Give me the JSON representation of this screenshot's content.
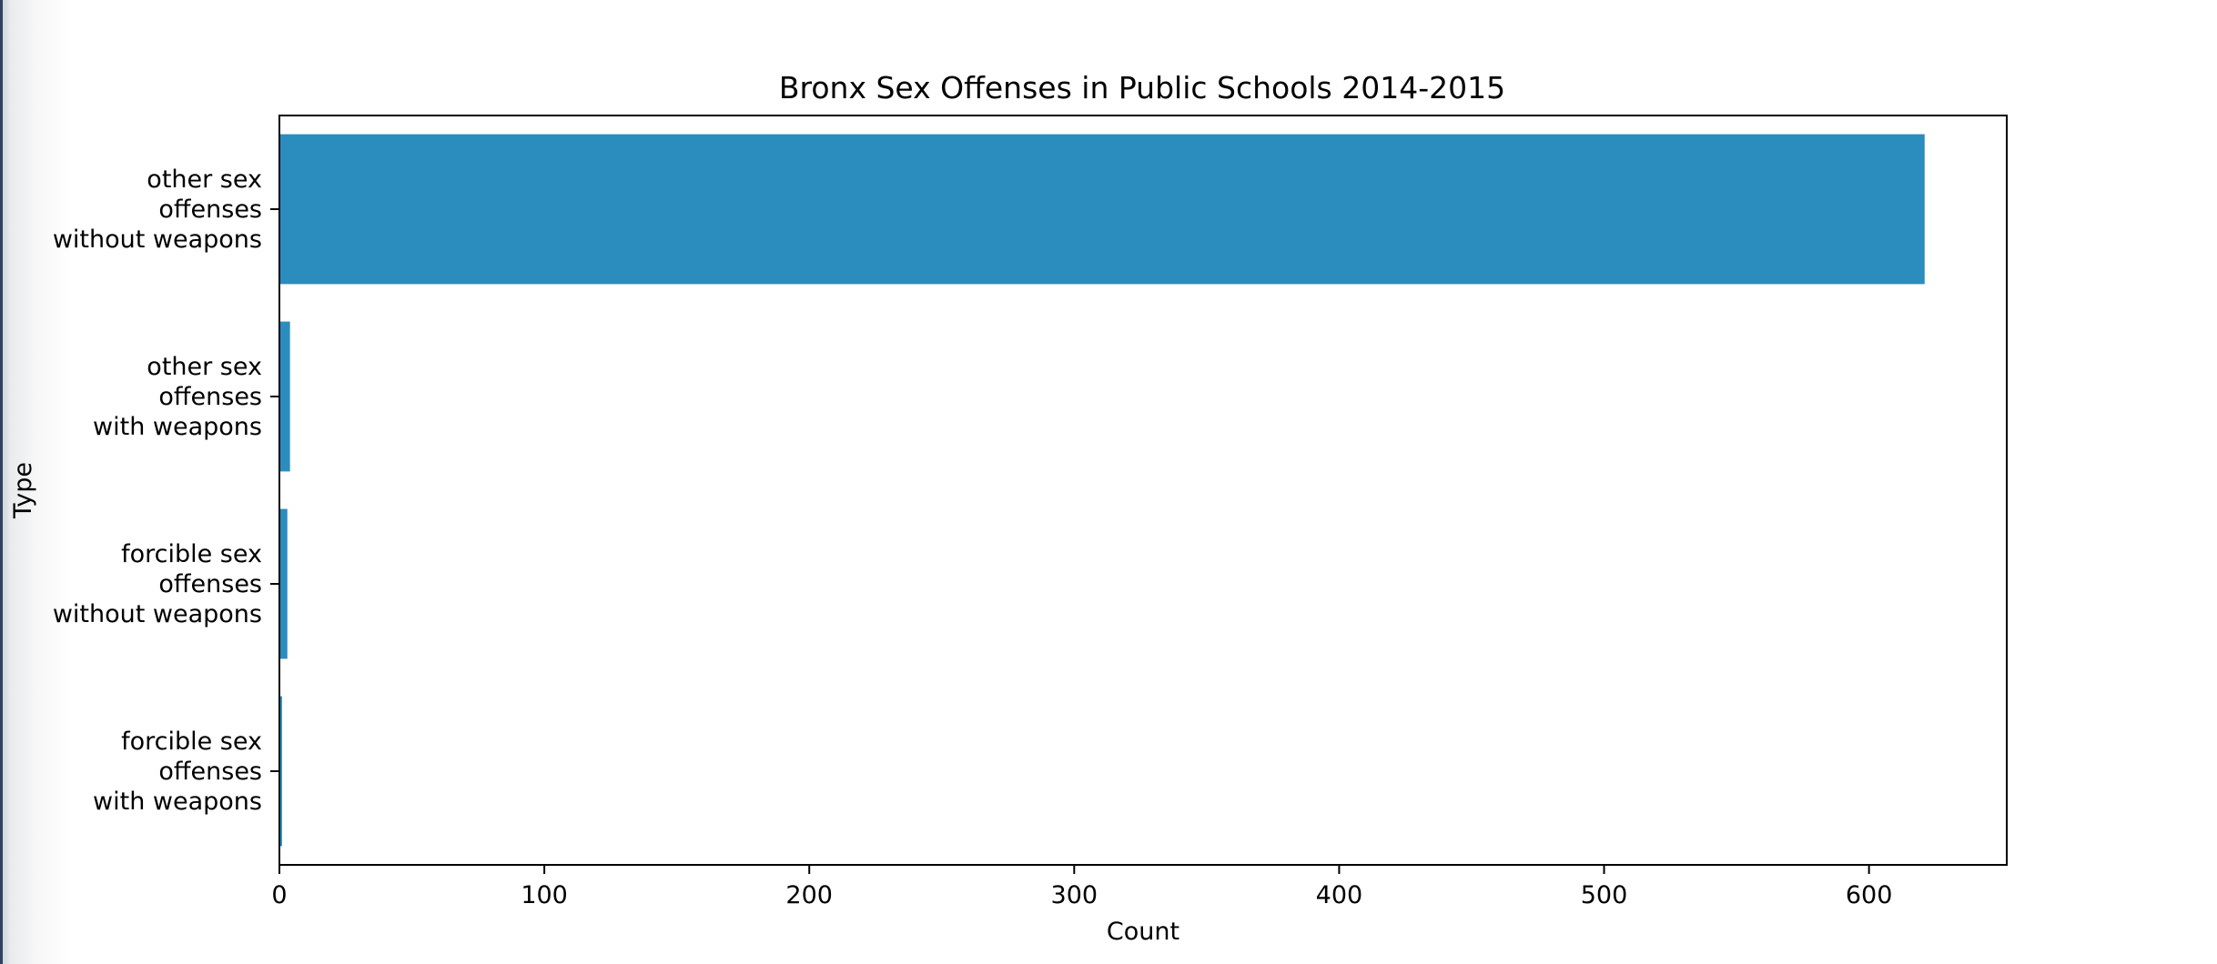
{
  "theme": {
    "bar_color": "#2b8cbe",
    "axis_color": "#000000",
    "background": "#ffffff"
  },
  "chart_data": {
    "type": "bar",
    "orientation": "horizontal",
    "title": "Bronx Sex Offenses in Public Schools 2014-2015",
    "xlabel": "Count",
    "ylabel": "Type",
    "xlim": [
      0,
      652
    ],
    "xticks": [
      0,
      100,
      200,
      300,
      400,
      500,
      600
    ],
    "grid": false,
    "legend": null,
    "categories": [
      [
        "other sex",
        "offenses",
        "without weapons"
      ],
      [
        "other sex",
        "offenses",
        "with weapons"
      ],
      [
        "forcible sex",
        "offenses",
        "without weapons"
      ],
      [
        "forcible sex",
        "offenses",
        "with weapons"
      ]
    ],
    "values": [
      621,
      4,
      3,
      1
    ]
  }
}
